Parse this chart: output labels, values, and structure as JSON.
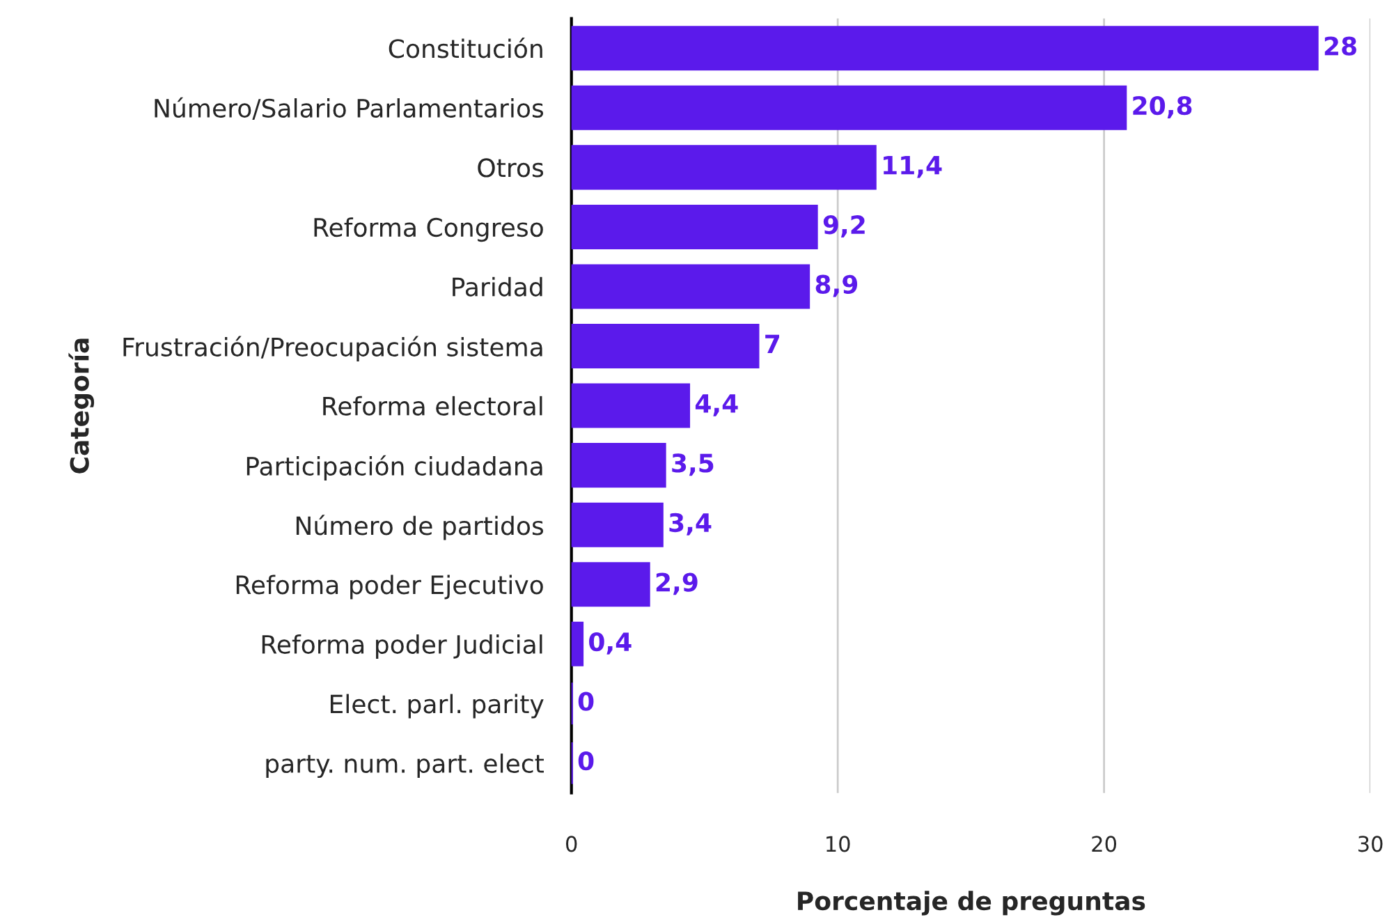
{
  "chart_data": {
    "type": "bar",
    "orientation": "horizontal",
    "xlabel": "Porcentaje de preguntas",
    "ylabel": "Categoría",
    "categories": [
      "Constitución",
      "Número/Salario Parlamentarios",
      "Otros",
      "Reforma Congreso",
      "Paridad",
      "Frustración/Preocupación sistema",
      "Reforma electoral",
      "Participación ciudadana",
      "Número de partidos",
      "Reforma poder Ejecutivo",
      "Reforma poder Judicial",
      "Elect. parl. parity",
      "party. num. part. elect"
    ],
    "values": [
      28,
      20.8,
      11.4,
      9.2,
      8.9,
      7,
      4.4,
      3.5,
      3.4,
      2.9,
      0.4,
      0,
      0
    ],
    "value_labels": [
      "28",
      "20,8",
      "11,4",
      "9,2",
      "8,9",
      "7",
      "4,4",
      "3,5",
      "3,4",
      "2,9",
      "0,4",
      "0",
      "0"
    ],
    "color": "#5b1aeb",
    "xlim": [
      0,
      30
    ],
    "xticks": [
      0,
      10,
      20,
      30
    ],
    "grid": "x"
  }
}
